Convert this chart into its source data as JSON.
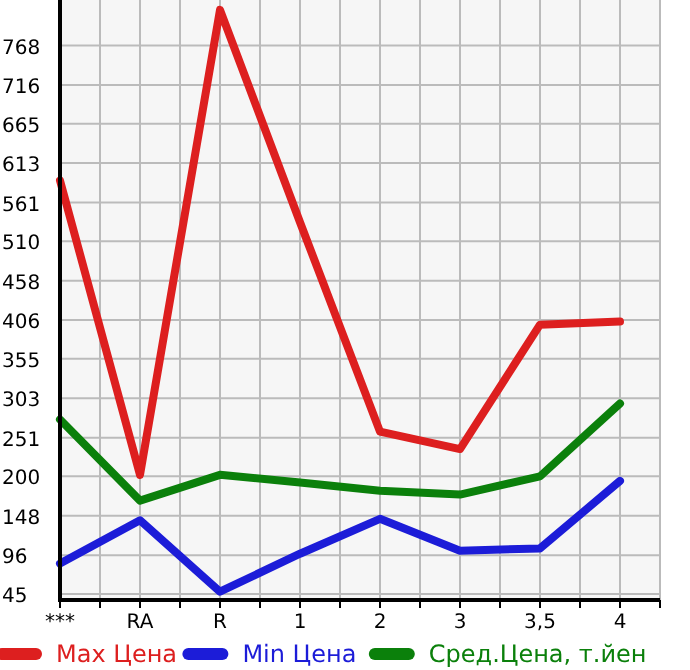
{
  "chart_data": {
    "type": "line",
    "categories": [
      "***",
      "RA",
      "R",
      "1",
      "2",
      "3",
      "3,5",
      "4"
    ],
    "series": [
      {
        "name": "Max Цена",
        "color": "#dd1f1f",
        "values": [
          590,
          202,
          815,
          535,
          259,
          236,
          400,
          404
        ]
      },
      {
        "name": "Min Цена",
        "color": "#1c1cd8",
        "values": [
          85,
          142,
          48,
          98,
          144,
          102,
          105,
          194
        ]
      },
      {
        "name": "Сред.Цена, т.йен",
        "color": "#0b800b",
        "values": [
          275,
          168,
          202,
          192,
          181,
          176,
          200,
          296
        ]
      }
    ],
    "ylim": [
      37,
      828
    ],
    "yticks": [
      45,
      96,
      148,
      200,
      251,
      303,
      355,
      406,
      458,
      510,
      561,
      613,
      665,
      716,
      768
    ],
    "grid": true,
    "legend": "bottom",
    "marker": "none",
    "line_style": "solid"
  }
}
